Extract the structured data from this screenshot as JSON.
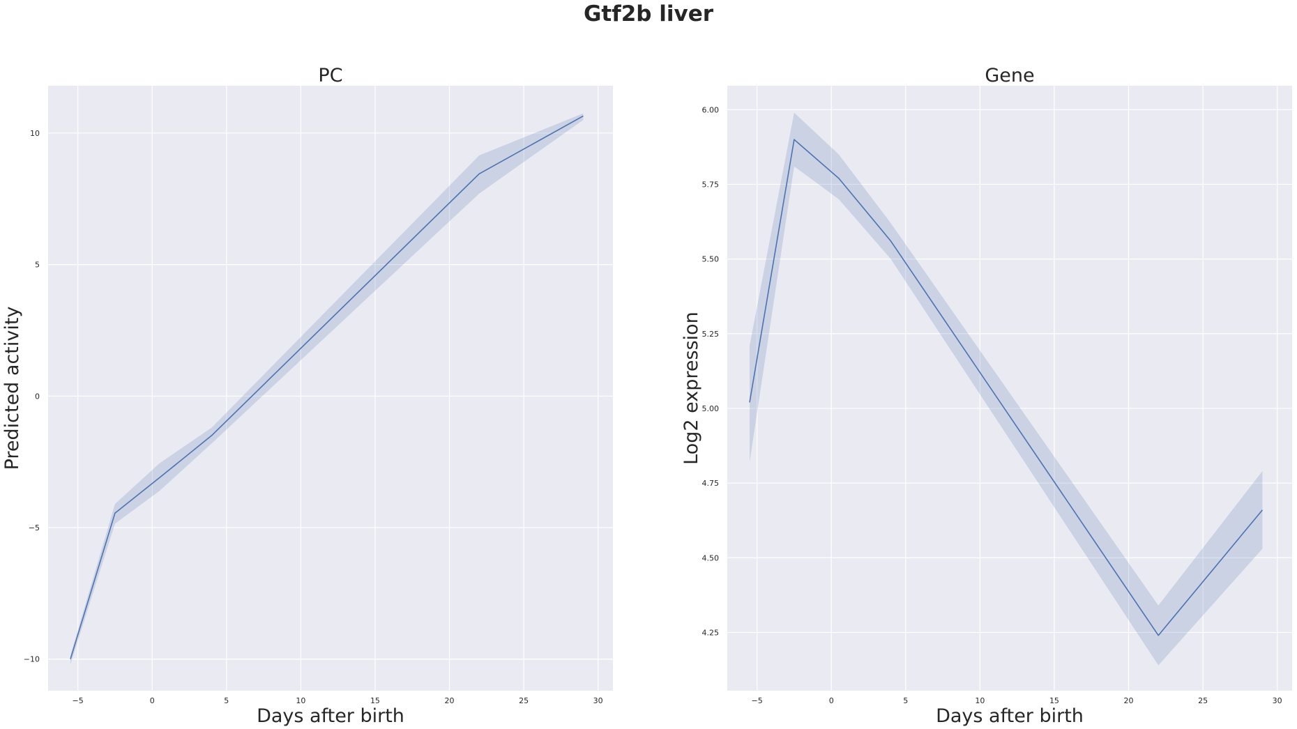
{
  "figure": {
    "title": "Gtf2b liver"
  },
  "chart_data": [
    {
      "type": "line",
      "title": "PC",
      "xlabel": "Days after birth",
      "ylabel": "Predicted activity",
      "xlim": [
        -7,
        31
      ],
      "ylim": [
        -11.2,
        11.8
      ],
      "xticks": [
        -5,
        0,
        5,
        10,
        15,
        20,
        25,
        30
      ],
      "xtick_labels": [
        "−5",
        "0",
        "5",
        "10",
        "15",
        "20",
        "25",
        "30"
      ],
      "yticks": [
        -10,
        -5,
        0,
        5,
        10
      ],
      "ytick_labels": [
        "−10",
        "−5",
        "0",
        "5",
        "10"
      ],
      "grid": true,
      "series": [
        {
          "x": [
            -5.5,
            -2.5,
            0.5,
            4,
            22,
            29
          ],
          "y": [
            -10.0,
            -4.45,
            -3.1,
            -1.5,
            8.45,
            10.65
          ],
          "ci_low": [
            -10.2,
            -4.85,
            -3.6,
            -1.8,
            7.7,
            10.5
          ],
          "ci_high": [
            -9.85,
            -4.1,
            -2.55,
            -1.2,
            9.15,
            10.75
          ],
          "color": "#4c72b0"
        }
      ]
    },
    {
      "type": "line",
      "title": "Gene",
      "xlabel": "Days after birth",
      "ylabel": "Log2 expression",
      "xlim": [
        -7,
        31
      ],
      "ylim": [
        4.055,
        6.08
      ],
      "xticks": [
        -5,
        0,
        5,
        10,
        15,
        20,
        25,
        30
      ],
      "xtick_labels": [
        "−5",
        "0",
        "5",
        "10",
        "15",
        "20",
        "25",
        "30"
      ],
      "yticks": [
        4.25,
        4.5,
        4.75,
        5.0,
        5.25,
        5.5,
        5.75,
        6.0
      ],
      "ytick_labels": [
        "4.25",
        "4.50",
        "4.75",
        "5.00",
        "5.25",
        "5.50",
        "5.75",
        "6.00"
      ],
      "grid": true,
      "series": [
        {
          "x": [
            -5.5,
            -2.5,
            0.5,
            4,
            22,
            29
          ],
          "y": [
            5.02,
            5.9,
            5.77,
            5.56,
            4.24,
            4.66
          ],
          "ci_low": [
            4.82,
            5.81,
            5.7,
            5.5,
            4.14,
            4.53
          ],
          "ci_high": [
            5.21,
            5.99,
            5.85,
            5.62,
            4.34,
            4.79
          ],
          "color": "#4c72b0"
        }
      ]
    }
  ]
}
